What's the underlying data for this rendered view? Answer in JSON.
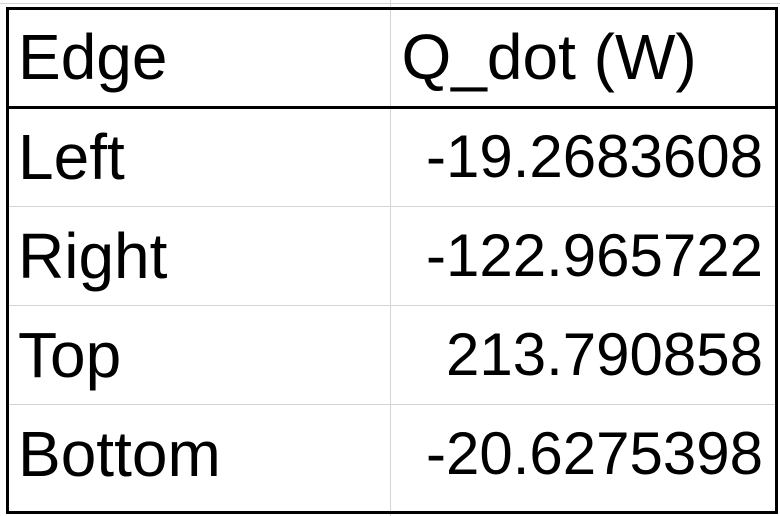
{
  "table": {
    "headers": [
      "Edge",
      "Q_dot (W)"
    ],
    "rows": [
      {
        "edge": "Left",
        "value": "-19.2683608"
      },
      {
        "edge": "Right",
        "value": "-122.965722"
      },
      {
        "edge": "Top",
        "value": "213.790858"
      },
      {
        "edge": "Bottom",
        "value": "-20.6275398"
      }
    ]
  },
  "colors": {
    "border": "#000000",
    "gridline": "#d4d4d4",
    "background": "#ffffff",
    "text": "#000000"
  }
}
